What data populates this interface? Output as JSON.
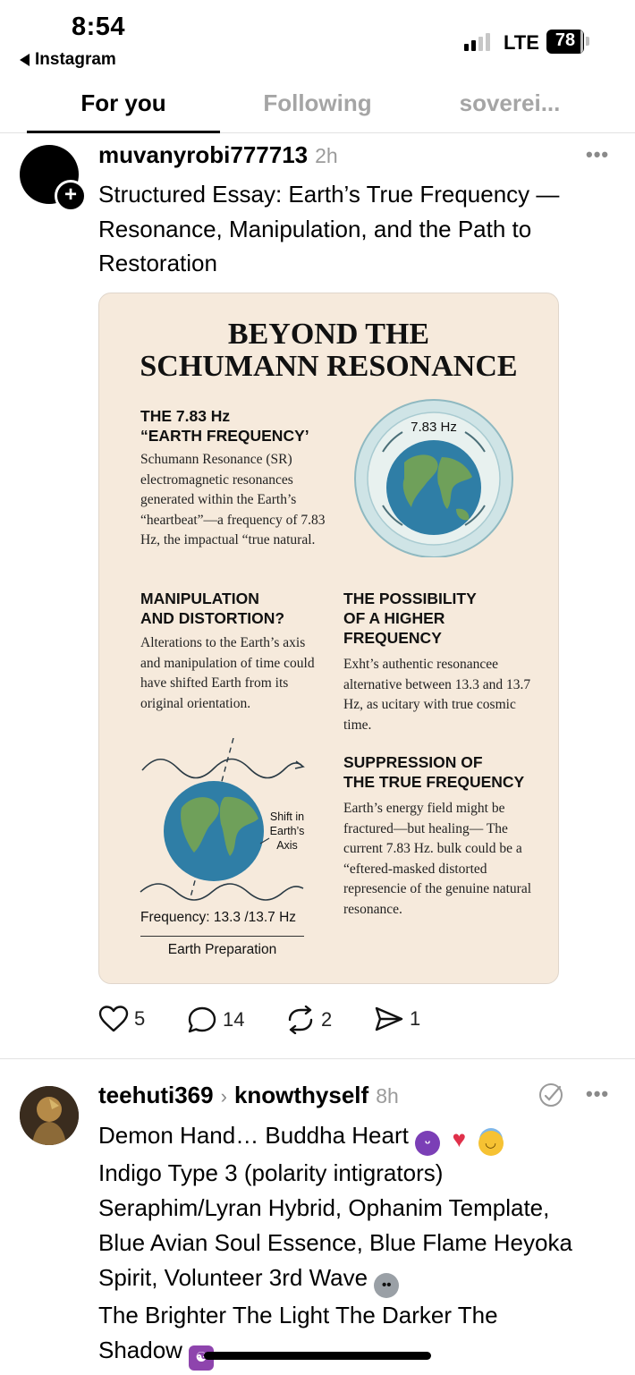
{
  "status_bar": {
    "time": "8:54",
    "back_app": "Instagram",
    "network": "LTE",
    "battery": "78"
  },
  "tabs": [
    {
      "label": "For you",
      "active": true
    },
    {
      "label": "Following",
      "active": false
    },
    {
      "label": "soverei...",
      "active": false
    }
  ],
  "post1": {
    "username": "muvanyrobi777713",
    "time": "2h",
    "text": "Structured Essay: Earth’s True Frequency — Resonance, Manipulation, and the Path to Restoration",
    "image": {
      "title_line1": "BEYOND THE",
      "title_line2": "SCHUMANN RESONANCE",
      "s1_heading_line1": "THE 7.83 Hz",
      "s1_heading_line2": "“EARTH FREQUENCY’",
      "s1_body": "Schumann Resonance (SR) electromagnetic resonances generated within the Earth’s “heartbeat”—a frequency of 7.83 Hz, the impactual “true natural.",
      "globe_label": "7.83 Hz",
      "s2_heading_line1": "MANIPULATION",
      "s2_heading_line2": "AND DISTORTION?",
      "s2_body": "Alterations to the Earth’s axis and manipulation of time could have shifted Earth from its original orientation.",
      "s3_heading_line1": "THE POSSIBILITY",
      "s3_heading_line2": "OF A HIGHER",
      "s3_heading_line3": "FREQUENCY",
      "s3_body": "Exht’s authentic resonancee alternative between 13.3 and 13.7 Hz, as ucitary with true cosmic time.",
      "s4_heading_line1": "SUPPRESSION OF",
      "s4_heading_line2": "THE TRUE FREQUENCY",
      "s4_body": "Earth’s energy field might be fractured—but healing— The current 7.83 Hz. bulk could be a “eftered-masked distorted represencie of the genuine natural resonance.",
      "axis_label_line1": "Shift in",
      "axis_label_line2": "Earth’s",
      "axis_label_line3": "Axis",
      "frequency_label": "Frequency: 13.3 /13.7 Hz",
      "footer_label": "Earth Preparation"
    },
    "actions": {
      "likes": "5",
      "replies": "14",
      "reposts": "2",
      "shares": "1"
    }
  },
  "post2": {
    "username": "teehuti369",
    "community": "knowthyself",
    "time": "8h",
    "line1": "Demon Hand… Buddha Heart",
    "line2": "Indigo Type 3 (polarity intigrators)",
    "line3": "Seraphim/Lyran Hybrid, Ophanim Template,",
    "line4": "Blue Avian Soul Essence, Blue Flame Heyoka",
    "line5": "Spirit, Volunteer 3rd Wave",
    "line6": "The Brighter The Light The Darker The",
    "line7": "Shadow"
  },
  "colors": {
    "card_bg": "#f6eadc",
    "muted_text": "#9b9b9b",
    "globe_ocean": "#2f7ea6",
    "globe_land": "#6fa05a",
    "ring": "#bcd9df"
  }
}
